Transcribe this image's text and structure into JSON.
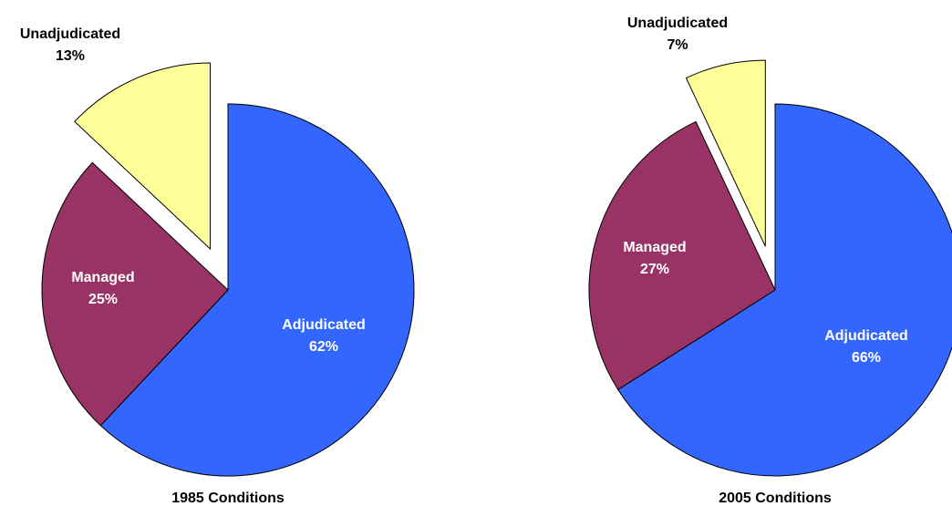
{
  "chart_data": [
    {
      "type": "pie",
      "title": "1985 Conditions",
      "labels": [
        "Adjudicated",
        "Managed",
        "Unadjudicated"
      ],
      "values": [
        62,
        25,
        13
      ],
      "value_labels": [
        "62%",
        "25%",
        "13%"
      ],
      "colors": [
        "#3366ff",
        "#993366",
        "#ffff99"
      ]
    },
    {
      "type": "pie",
      "title": "2005 Conditions",
      "labels": [
        "Adjudicated",
        "Managed",
        "Unadjudicated"
      ],
      "values": [
        66,
        27,
        7
      ],
      "value_labels": [
        "66%",
        "27%",
        "7%"
      ],
      "colors": [
        "#3366ff",
        "#993366",
        "#ffff99"
      ]
    }
  ]
}
